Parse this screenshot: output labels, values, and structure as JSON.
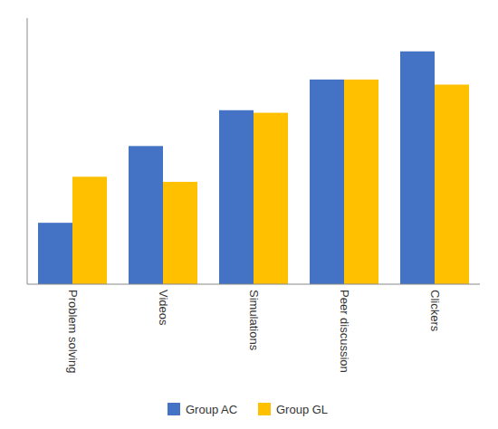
{
  "chart_data": {
    "type": "bar",
    "categories": [
      "Problem solving",
      "Videos",
      "Simulations",
      "Peer discussion",
      "Clickers"
    ],
    "series": [
      {
        "name": "Group AC",
        "color": "#4472C4",
        "values": [
          1.2,
          2.7,
          3.4,
          4.0,
          4.55
        ]
      },
      {
        "name": "Group GL",
        "color": "#FFC000",
        "values": [
          2.1,
          2.0,
          3.35,
          4.0,
          3.9
        ]
      }
    ],
    "ylim": [
      0,
      5.2
    ],
    "grid": false,
    "legend": "bottom",
    "tick_labels": "x"
  }
}
